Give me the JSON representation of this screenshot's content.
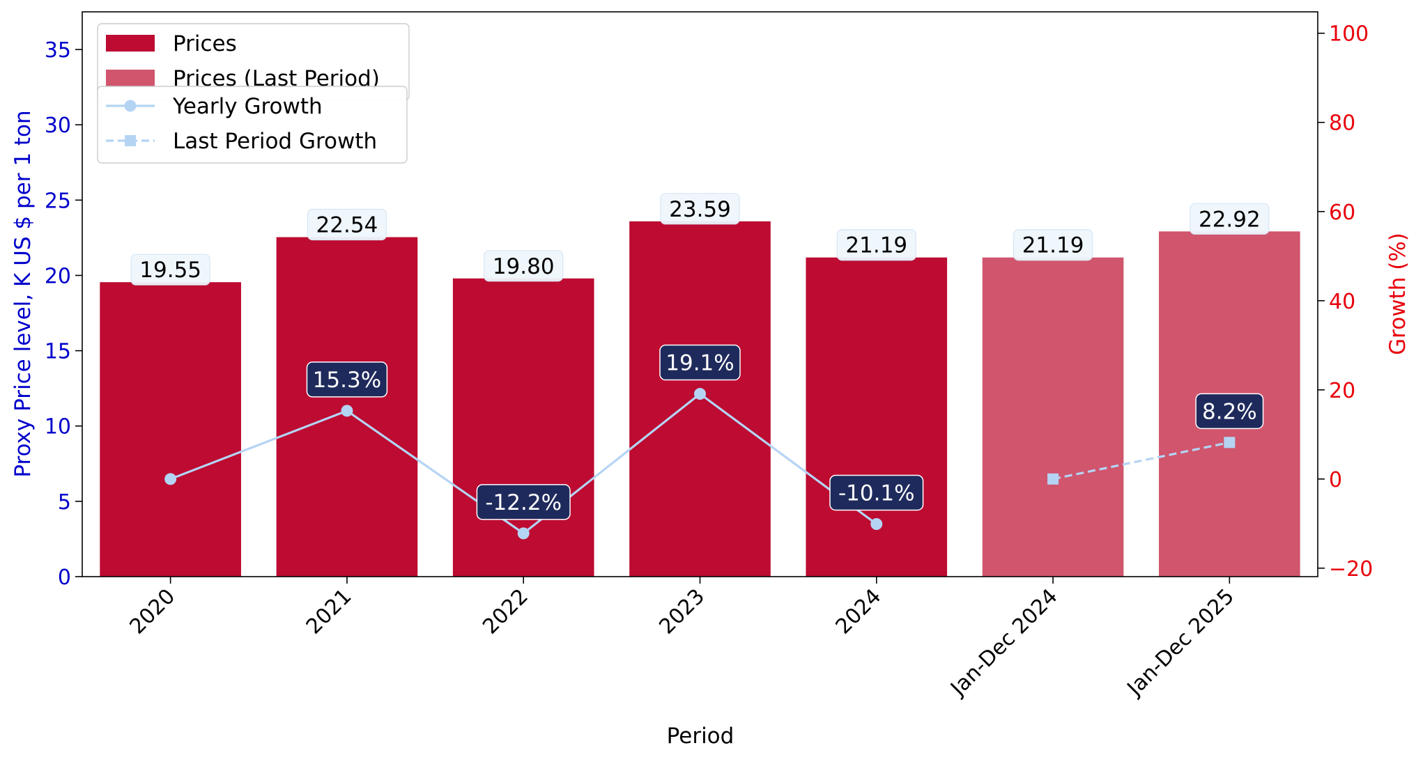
{
  "chart_data": {
    "type": "bar",
    "categories": [
      "2020",
      "2021",
      "2022",
      "2023",
      "2024",
      "Jan-Dec 2024",
      "Jan-Dec 2025"
    ],
    "xlabel": "Period",
    "ylabel": "Proxy Price level, K US $ per 1 ton",
    "ylabel_right": "Growth (%)",
    "ylim": [
      0,
      37.5
    ],
    "ylim_right": [
      -21.9,
      104.8
    ],
    "yticks": [
      0,
      5,
      10,
      15,
      20,
      25,
      30,
      35
    ],
    "yticks_right": [
      -20,
      0,
      20,
      40,
      60,
      80,
      100
    ],
    "grid": false,
    "legend_position": "top-left",
    "series": [
      {
        "name": "Prices",
        "kind": "bar",
        "color": "#bd0b31",
        "values": [
          19.55,
          22.54,
          19.8,
          23.59,
          21.19,
          null,
          null
        ],
        "labels": [
          "19.55",
          "22.54",
          "19.80",
          "23.59",
          "21.19",
          "",
          ""
        ]
      },
      {
        "name": "Prices (Last Period)",
        "kind": "bar",
        "color": "#d0556d",
        "values": [
          null,
          null,
          null,
          null,
          null,
          21.19,
          22.92
        ],
        "labels": [
          "",
          "",
          "",
          "",
          "",
          "21.19",
          "22.92"
        ]
      },
      {
        "name": "Yearly Growth",
        "kind": "line",
        "axis": "right",
        "color": "#b5d4f4",
        "marker": "circle",
        "values": [
          0,
          15.3,
          -12.2,
          19.1,
          -10.1,
          null,
          null
        ],
        "labels": [
          "",
          "15.3%",
          "-12.2%",
          "19.1%",
          "-10.1%",
          "",
          ""
        ]
      },
      {
        "name": "Last Period Growth",
        "kind": "line",
        "axis": "right",
        "dashed": true,
        "color": "#b5d4f4",
        "marker": "square",
        "values": [
          null,
          null,
          null,
          null,
          null,
          0,
          8.2
        ],
        "labels": [
          "",
          "",
          "",
          "",
          "",
          "",
          "8.2%"
        ]
      }
    ]
  }
}
